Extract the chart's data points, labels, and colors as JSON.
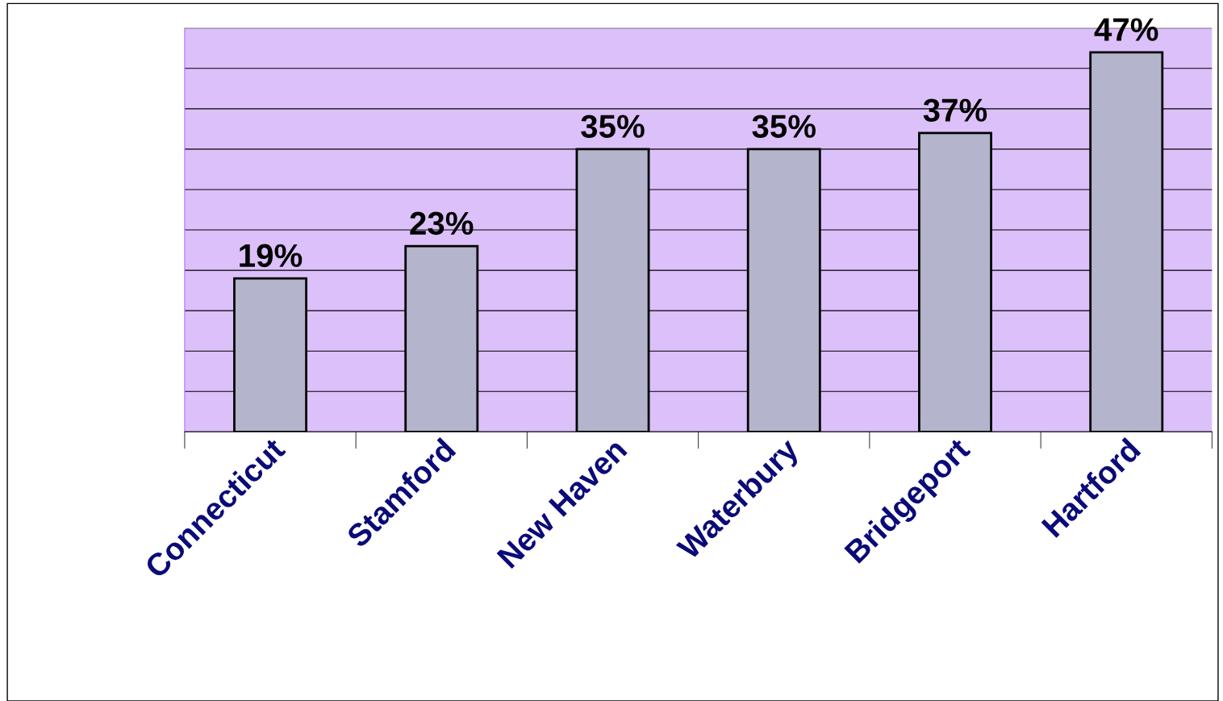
{
  "chart_data": {
    "type": "bar",
    "categories": [
      "Connecticut",
      "Stamford",
      "New Haven",
      "Waterbury",
      "Bridgeport",
      "Hartford"
    ],
    "values": [
      19,
      23,
      35,
      35,
      37,
      47
    ],
    "value_labels": [
      "19%",
      "23%",
      "35%",
      "35%",
      "37%",
      "47%"
    ],
    "color": "#b4b4cc",
    "ylim": [
      0,
      50
    ],
    "yticks": [
      {
        "value": 0,
        "label": null
      },
      {
        "value": 5,
        "label": null
      },
      {
        "value": 10,
        "label": null
      },
      {
        "value": 15,
        "label": null
      },
      {
        "value": 20,
        "label": null
      },
      {
        "value": 25,
        "label": null
      },
      {
        "value": 30,
        "label": null
      },
      {
        "value": 35,
        "label": null
      },
      {
        "value": 40,
        "label": null
      },
      {
        "value": 45,
        "label": null
      },
      {
        "value": 50,
        "label": null
      }
    ],
    "grid": "y",
    "tick_labels": "x"
  }
}
